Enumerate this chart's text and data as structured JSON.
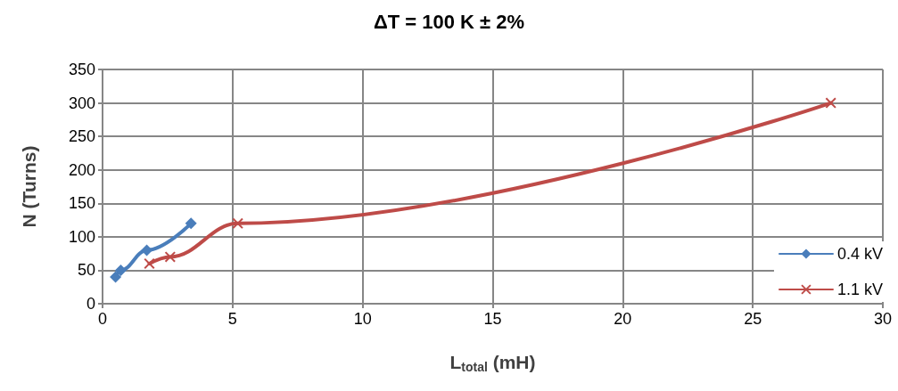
{
  "chart_data": {
    "type": "line",
    "title": "ΔT = 100 K ± 2%",
    "xlabel": "L$_{total}$ (mH)",
    "ylabel": "N (Turns)",
    "series": [
      {
        "name": "0.4 kV",
        "color": "#4a7ebb",
        "marker": "diamond",
        "x": [
          0.5,
          0.7,
          1.7,
          3.4
        ],
        "values": [
          40,
          50,
          80,
          120
        ]
      },
      {
        "name": "1.1 kV",
        "color": "#be4b48",
        "marker": "cross",
        "x": [
          1.8,
          2.6,
          5.2,
          28
        ],
        "values": [
          60,
          70,
          120,
          300
        ]
      }
    ],
    "xlim": [
      0,
      30
    ],
    "xticks": [
      0,
      5,
      10,
      15,
      20,
      25,
      30
    ],
    "ylim": [
      0,
      350
    ],
    "yticks": [
      0,
      50,
      100,
      150,
      200,
      250,
      300,
      350
    ],
    "grid": true,
    "legend": "bottom right",
    "line_style": "solid"
  }
}
